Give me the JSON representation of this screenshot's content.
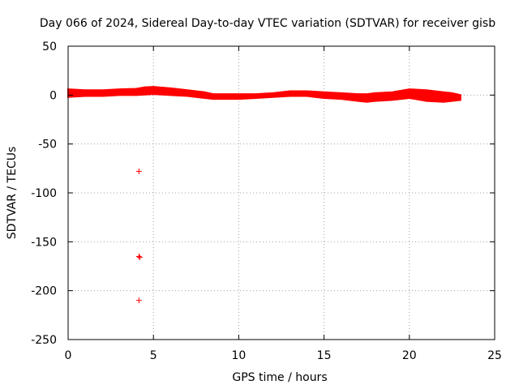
{
  "chart_data": {
    "type": "scatter",
    "title": "Day 066 of 2024, Sidereal Day-to-day VTEC variation (SDTVAR) for receiver gisb",
    "xlabel": "GPS time / hours",
    "ylabel": "SDTVAR / TECUs",
    "xlim": [
      0,
      25
    ],
    "ylim": [
      -250,
      50
    ],
    "xticks": [
      0,
      5,
      10,
      15,
      20,
      25
    ],
    "yticks": [
      50,
      0,
      -50,
      -100,
      -150,
      -200,
      -250
    ],
    "xtick_labels": [
      "0",
      "5",
      "10",
      "15",
      "20",
      "25"
    ],
    "ytick_labels": [
      "50",
      "0",
      "-50",
      "-100",
      "-150",
      "-200",
      "-250"
    ],
    "grid": true,
    "marker": "+",
    "color": "#ff0000",
    "band": {
      "name": "SDTVAR",
      "x": [
        0.0,
        1.0,
        2.0,
        3.0,
        4.0,
        4.5,
        5.0,
        6.0,
        7.0,
        8.0,
        8.5,
        9.0,
        10.0,
        11.0,
        12.0,
        13.0,
        14.0,
        15.0,
        16.0,
        17.0,
        17.5,
        18.0,
        19.0,
        20.0,
        21.0,
        22.0,
        22.5,
        23.0
      ],
      "high": [
        6.0,
        5.0,
        5.0,
        6.0,
        6.5,
        8.0,
        8.5,
        7.0,
        5.0,
        3.0,
        1.0,
        1.0,
        1.0,
        1.0,
        2.0,
        4.0,
        4.0,
        3.0,
        2.0,
        1.0,
        1.0,
        2.0,
        3.0,
        6.0,
        5.0,
        3.0,
        2.0,
        0.0
      ],
      "low": [
        -2.0,
        -1.0,
        -1.0,
        0.0,
        0.0,
        0.5,
        1.0,
        0.0,
        -1.0,
        -3.0,
        -4.0,
        -4.0,
        -4.0,
        -3.0,
        -2.0,
        -1.0,
        -1.0,
        -3.0,
        -4.0,
        -6.0,
        -7.0,
        -6.0,
        -5.0,
        -3.0,
        -6.0,
        -7.0,
        -6.0,
        -5.0
      ]
    },
    "outliers": {
      "x": [
        4.15,
        4.15,
        4.2,
        4.15
      ],
      "y": [
        -78,
        -165,
        -166,
        -210
      ]
    }
  }
}
